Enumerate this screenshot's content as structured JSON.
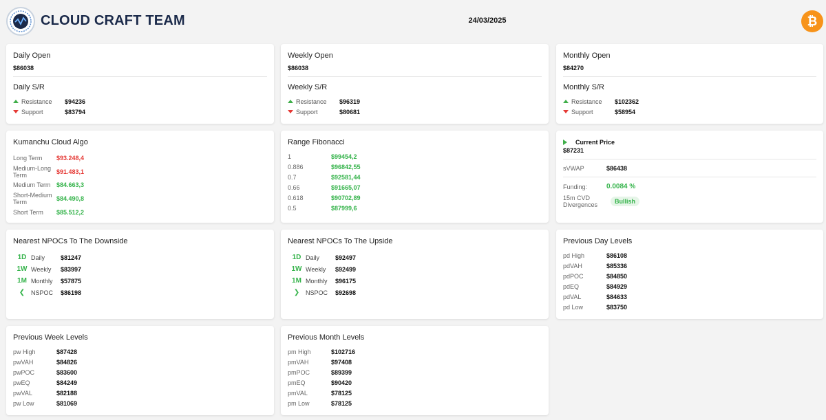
{
  "header": {
    "brand": "CLOUD CRAFT TEAM",
    "date": "24/03/2025",
    "logo_icon": "wave-logo-icon",
    "coin_icon": "bitcoin-icon",
    "coin_glyph": "₿",
    "brand_color": "#1b2a4a",
    "coin_color": "#f7931a"
  },
  "daily": {
    "open_title": "Daily Open",
    "open_value": "$86038",
    "sr_title": "Daily S/R",
    "resistance_label": "Resistance",
    "resistance_value": "$94236",
    "support_label": "Support",
    "support_value": "$83794"
  },
  "weekly": {
    "open_title": "Weekly Open",
    "open_value": "$86038",
    "sr_title": "Weekly S/R",
    "resistance_label": "Resistance",
    "resistance_value": "$96319",
    "support_label": "Support",
    "support_value": "$80681"
  },
  "monthly": {
    "open_title": "Monthly Open",
    "open_value": "$84270",
    "sr_title": "Monthly S/R",
    "resistance_label": "Resistance",
    "resistance_value": "$102362",
    "support_label": "Support",
    "support_value": "$58954"
  },
  "kumanchu": {
    "title": "Kumanchu Cloud Algo",
    "rows": [
      {
        "label": "Long Term",
        "value": "$93.248,4",
        "color": "red"
      },
      {
        "label": "Medium-Long Term",
        "value": "$91.483,1",
        "color": "red"
      },
      {
        "label": "Medium Term",
        "value": "$84.663,3",
        "color": "green"
      },
      {
        "label": "Short-Medium Term",
        "value": "$84.490,8",
        "color": "green"
      },
      {
        "label": "Short Term",
        "value": "$85.512,2",
        "color": "green"
      }
    ]
  },
  "fibonacci": {
    "title": "Range Fibonacci",
    "rows": [
      {
        "label": "1",
        "value": "$99454,2"
      },
      {
        "label": "0.886",
        "value": "$96842,55"
      },
      {
        "label": "0.7",
        "value": "$92581,44"
      },
      {
        "label": "0.66",
        "value": "$91665,07"
      },
      {
        "label": "0.618",
        "value": "$90702,89"
      },
      {
        "label": "0.5",
        "value": "$87999,6"
      }
    ]
  },
  "price": {
    "current_label": "Current Price",
    "current_value": "$87231",
    "svwap_label": "sVWAP",
    "svwap_value": "$86438",
    "funding_label": "Funding:",
    "funding_value": "0.0084 %",
    "cvd_label": "15m CVD Divergences",
    "cvd_value": "Bullish"
  },
  "npoc_down": {
    "title": "Nearest NPOCs To The Downside",
    "rows": [
      {
        "code": "1D",
        "label": "Daily",
        "value": "$81247"
      },
      {
        "code": "1W",
        "label": "Weekly",
        "value": "$83997"
      },
      {
        "code": "1M",
        "label": "Monthly",
        "value": "$57875"
      },
      {
        "code": "❮",
        "label": "NSPOC",
        "value": "$86198"
      }
    ]
  },
  "npoc_up": {
    "title": "Nearest NPOCs To The Upside",
    "rows": [
      {
        "code": "1D",
        "label": "Daily",
        "value": "$92497"
      },
      {
        "code": "1W",
        "label": "Weekly",
        "value": "$92499"
      },
      {
        "code": "1M",
        "label": "Monthly",
        "value": "$96175"
      },
      {
        "code": "❯",
        "label": "NSPOC",
        "value": "$92698"
      }
    ]
  },
  "prev_day": {
    "title": "Previous Day Levels",
    "rows": [
      {
        "label": "pd High",
        "value": "$86108"
      },
      {
        "label": "pdVAH",
        "value": "$85336"
      },
      {
        "label": "pdPOC",
        "value": "$84850"
      },
      {
        "label": "pdEQ",
        "value": "$84929"
      },
      {
        "label": "pdVAL",
        "value": "$84633"
      },
      {
        "label": "pd Low",
        "value": "$83750"
      }
    ]
  },
  "prev_week": {
    "title": "Previous Week Levels",
    "rows": [
      {
        "label": "pw High",
        "value": "$87428"
      },
      {
        "label": "pwVAH",
        "value": "$84826"
      },
      {
        "label": "pwPOC",
        "value": "$83600"
      },
      {
        "label": "pwEQ",
        "value": "$84249"
      },
      {
        "label": "pwVAL",
        "value": "$82188"
      },
      {
        "label": "pw Low",
        "value": "$81069"
      }
    ]
  },
  "prev_month": {
    "title": "Previous Month Levels",
    "rows": [
      {
        "label": "pm High",
        "value": "$102716"
      },
      {
        "label": "pmVAH",
        "value": "$97408"
      },
      {
        "label": "pmPOC",
        "value": "$89399"
      },
      {
        "label": "pmEQ",
        "value": "$90420"
      },
      {
        "label": "pmVAL",
        "value": "$78125"
      },
      {
        "label": "pm Low",
        "value": "$78125"
      }
    ]
  }
}
